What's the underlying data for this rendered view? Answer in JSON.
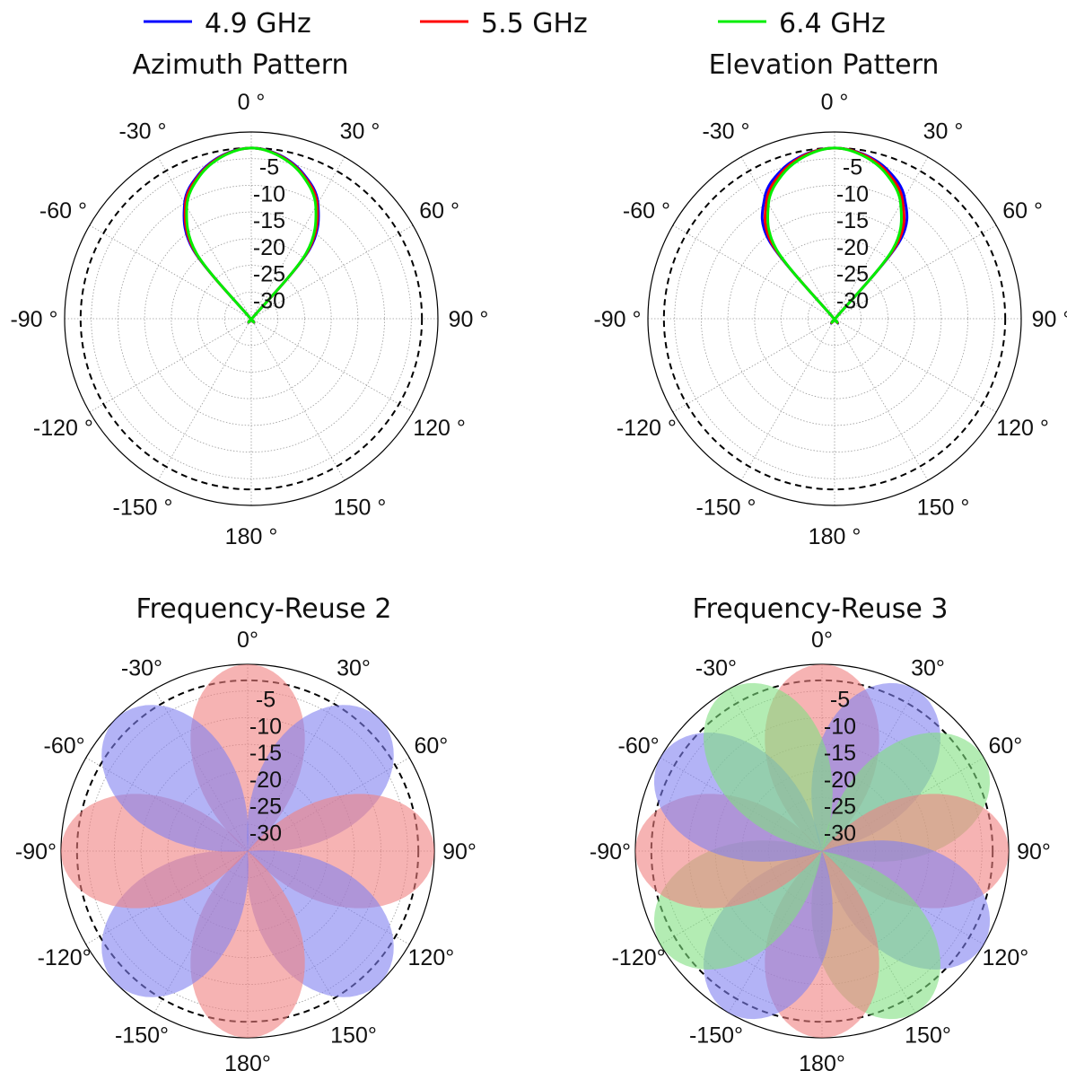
{
  "legend": [
    {
      "label": "4.9 GHz",
      "color": "#0000ff"
    },
    {
      "label": "5.5 GHz",
      "color": "#ff0000"
    },
    {
      "label": "6.4 GHz",
      "color": "#00ee00"
    }
  ],
  "polar_axes": {
    "angle_labels_top": [
      "0 °",
      "30 °",
      "60 °",
      "90 °",
      "120 °",
      "150 °",
      "180 °",
      "-150 °",
      "-120 °",
      "-90 °",
      "-60 °",
      "-30 °"
    ],
    "angle_labels_bottom": [
      "0°",
      "30°",
      "60°",
      "90°",
      "120°",
      "150°",
      "180°",
      "-150°",
      "-120°",
      "-90°",
      "-60°",
      "-30°"
    ],
    "radial_labels": [
      "-5",
      "-10",
      "-15",
      "-20",
      "-25",
      "-30"
    ],
    "radial_range_db": [
      -35,
      0
    ]
  },
  "chart_data": [
    {
      "type": "line",
      "subtype": "polar",
      "title": "Azimuth Pattern",
      "r_unit": "dB",
      "rlim": [
        -35,
        0
      ],
      "reference_circle_db": -3,
      "angles_deg": [
        -50,
        -40,
        -30,
        -20,
        -10,
        0,
        10,
        20,
        30,
        40,
        50
      ],
      "series": [
        {
          "name": "4.9 GHz",
          "values": [
            -34.5,
            -18,
            -10,
            -6.2,
            -3.9,
            -3,
            -3.9,
            -6.2,
            -10,
            -18,
            -34.5
          ]
        },
        {
          "name": "5.5 GHz",
          "values": [
            -34.5,
            -18.5,
            -10.3,
            -6.4,
            -4,
            -3,
            -4,
            -6.4,
            -10.3,
            -18.5,
            -34.5
          ]
        },
        {
          "name": "6.4 GHz",
          "values": [
            -34.5,
            -19,
            -10.8,
            -6.6,
            -4.1,
            -3,
            -4.1,
            -6.6,
            -10.8,
            -19,
            -34.5
          ]
        }
      ]
    },
    {
      "type": "line",
      "subtype": "polar",
      "title": "Elevation Pattern",
      "r_unit": "dB",
      "rlim": [
        -35,
        0
      ],
      "reference_circle_db": -3,
      "angles_deg": [
        -50,
        -40,
        -30,
        -20,
        -10,
        0,
        10,
        20,
        30,
        40,
        50
      ],
      "series": [
        {
          "name": "4.9 GHz",
          "values": [
            -34.5,
            -16,
            -8.8,
            -5.5,
            -3.7,
            -3,
            -3.7,
            -5.5,
            -8.8,
            -16,
            -34.5
          ]
        },
        {
          "name": "5.5 GHz",
          "values": [
            -34.5,
            -17,
            -9.5,
            -5.9,
            -3.8,
            -3,
            -3.8,
            -5.9,
            -9.5,
            -17,
            -34.5
          ]
        },
        {
          "name": "6.4 GHz",
          "values": [
            -34.5,
            -18,
            -10.2,
            -6.3,
            -4,
            -3,
            -4,
            -6.3,
            -10.2,
            -18,
            -34.5
          ]
        }
      ]
    },
    {
      "type": "area",
      "subtype": "polar",
      "title": "Frequency-Reuse 2",
      "r_unit": "dB",
      "rlim": [
        -35,
        0
      ],
      "reference_circle_db": -3,
      "beam_peak_db": 0,
      "beams": [
        {
          "center_deg": 0,
          "color": "#f08080"
        },
        {
          "center_deg": 45,
          "color": "#8080f0"
        },
        {
          "center_deg": 90,
          "color": "#f08080"
        },
        {
          "center_deg": 135,
          "color": "#8080f0"
        },
        {
          "center_deg": 180,
          "color": "#f08080"
        },
        {
          "center_deg": -135,
          "color": "#8080f0"
        },
        {
          "center_deg": -90,
          "color": "#f08080"
        },
        {
          "center_deg": -45,
          "color": "#8080f0"
        }
      ]
    },
    {
      "type": "area",
      "subtype": "polar",
      "title": "Frequency-Reuse 3",
      "r_unit": "dB",
      "rlim": [
        -35,
        0
      ],
      "reference_circle_db": -3,
      "beam_peak_db": 0,
      "beams": [
        {
          "center_deg": 0,
          "color": "#f08080"
        },
        {
          "center_deg": 30,
          "color": "#8080f0"
        },
        {
          "center_deg": 60,
          "color": "#80e080"
        },
        {
          "center_deg": 90,
          "color": "#f08080"
        },
        {
          "center_deg": 120,
          "color": "#8080f0"
        },
        {
          "center_deg": 150,
          "color": "#80e080"
        },
        {
          "center_deg": 180,
          "color": "#f08080"
        },
        {
          "center_deg": -150,
          "color": "#8080f0"
        },
        {
          "center_deg": -120,
          "color": "#80e080"
        },
        {
          "center_deg": -90,
          "color": "#f08080"
        },
        {
          "center_deg": -60,
          "color": "#8080f0"
        },
        {
          "center_deg": -30,
          "color": "#80e080"
        }
      ]
    }
  ]
}
